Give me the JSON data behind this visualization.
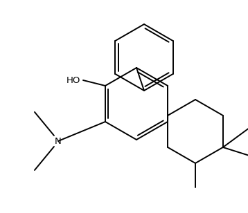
{
  "line_color": "#000000",
  "bg_color": "#ffffff",
  "line_width": 1.4,
  "font_size": 9,
  "label_HO": "HO",
  "label_N": "N",
  "figsize": [
    3.58,
    3.08
  ],
  "dpi": 100
}
